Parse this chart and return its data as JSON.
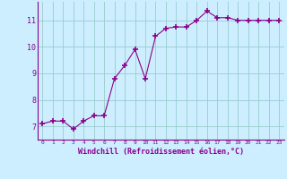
{
  "x": [
    0,
    1,
    2,
    3,
    4,
    5,
    6,
    7,
    8,
    9,
    10,
    11,
    12,
    13,
    14,
    15,
    16,
    17,
    18,
    19,
    20,
    21,
    22,
    23
  ],
  "y": [
    7.1,
    7.2,
    7.2,
    6.9,
    7.2,
    7.4,
    7.4,
    8.8,
    9.3,
    9.9,
    8.8,
    10.4,
    10.7,
    10.75,
    10.75,
    11.0,
    11.35,
    11.1,
    11.1,
    11.0,
    11.0,
    11.0,
    11.0,
    11.0
  ],
  "line_color": "#8B008B",
  "marker": "+",
  "marker_size": 4,
  "background_color": "#cceeff",
  "grid_color": "#99cccc",
  "xlabel": "Windchill (Refroidissement éolien,°C)",
  "xlabel_color": "#8B008B",
  "tick_color": "#8B008B",
  "spine_color": "#8B008B",
  "yticks": [
    7,
    8,
    9,
    10,
    11
  ],
  "xticks": [
    0,
    1,
    2,
    3,
    4,
    5,
    6,
    7,
    8,
    9,
    10,
    11,
    12,
    13,
    14,
    15,
    16,
    17,
    18,
    19,
    20,
    21,
    22,
    23
  ],
  "ylim": [
    6.5,
    11.7
  ],
  "xlim": [
    -0.5,
    23.5
  ]
}
